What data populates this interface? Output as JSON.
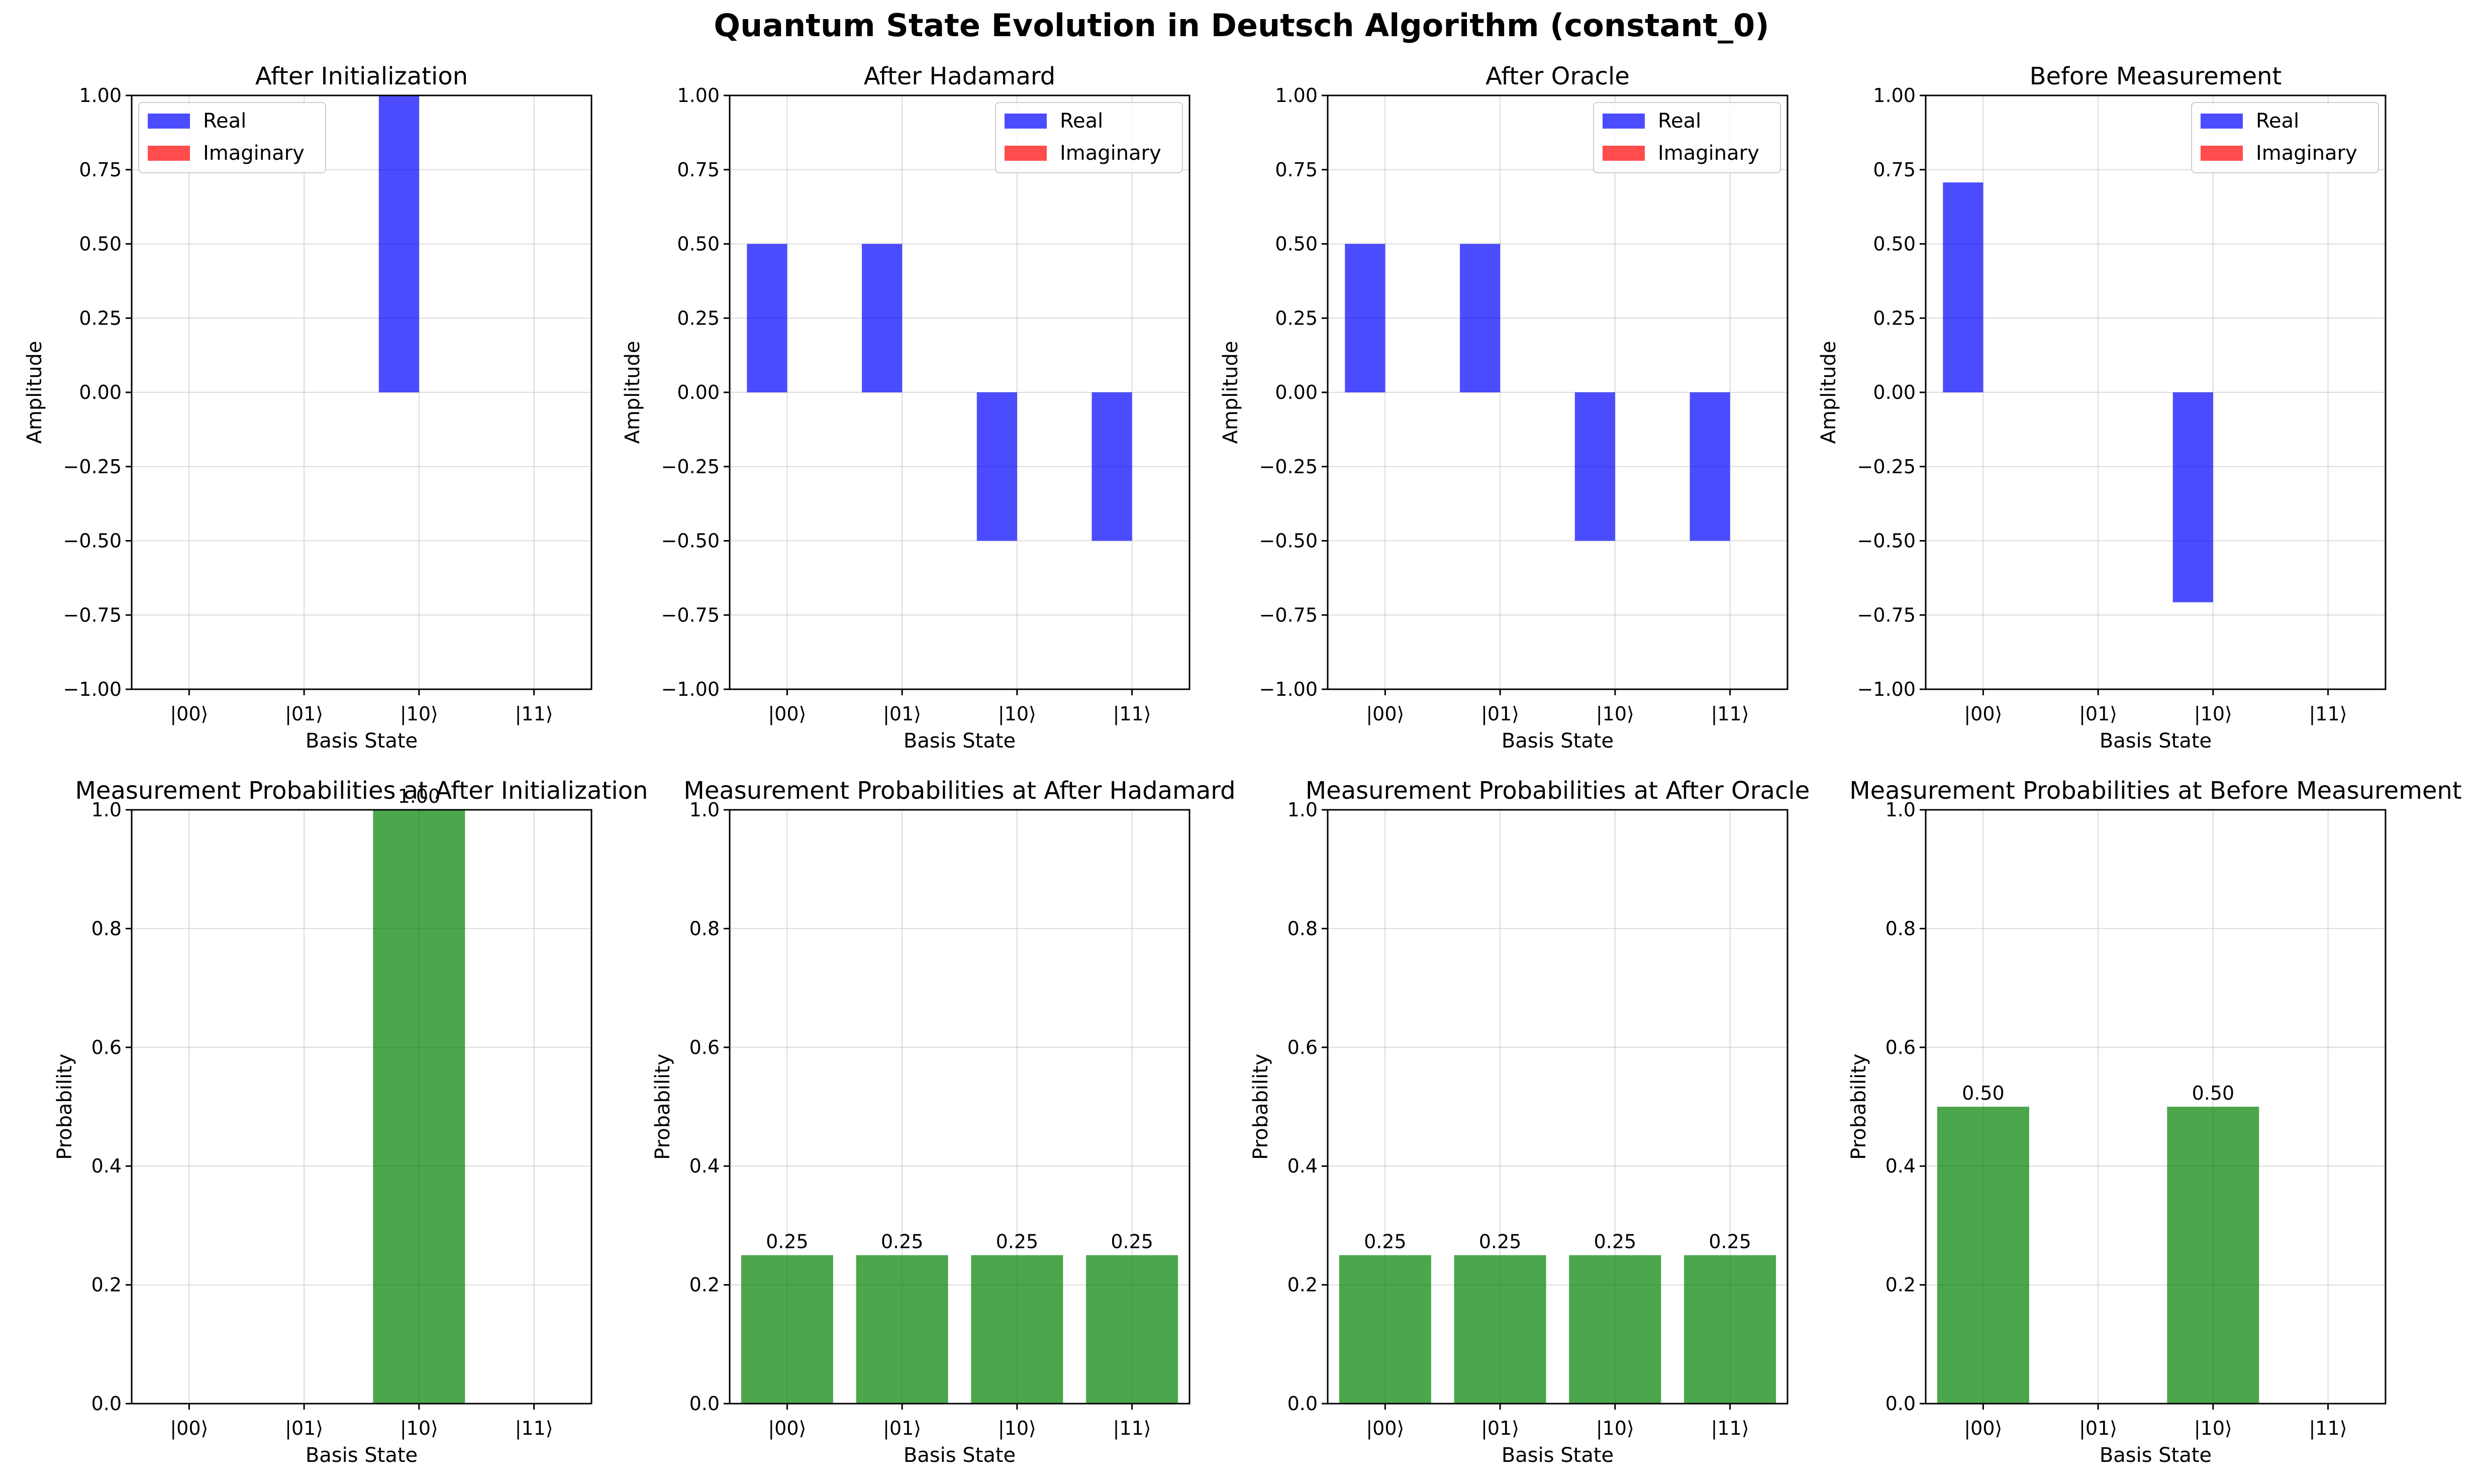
{
  "figure_title": "Quantum State Evolution in Deutsch Algorithm (constant_0)",
  "colors": {
    "real": "#0000ff",
    "imaginary": "#ff0000",
    "probability": "#008000",
    "grid": "#b0b0b0"
  },
  "chart_data": [
    {
      "type": "bar",
      "title": "After Initialization",
      "categories": [
        "|00⟩",
        "|01⟩",
        "|10⟩",
        "|11⟩"
      ],
      "series": [
        {
          "name": "Real",
          "values": [
            0,
            0,
            1.0,
            0
          ]
        },
        {
          "name": "Imaginary",
          "values": [
            0,
            0,
            0,
            0
          ]
        }
      ],
      "xlabel": "Basis State",
      "ylabel": "Amplitude",
      "ylim": [
        -1.0,
        1.0
      ],
      "yticks": [
        "1.00",
        "0.75",
        "0.50",
        "0.25",
        "0.00",
        "−0.25",
        "−0.50",
        "−0.75",
        "−1.00"
      ],
      "grid": true,
      "legend": "top-left"
    },
    {
      "type": "bar",
      "title": "After Hadamard",
      "categories": [
        "|00⟩",
        "|01⟩",
        "|10⟩",
        "|11⟩"
      ],
      "series": [
        {
          "name": "Real",
          "values": [
            0.5,
            0.5,
            -0.5,
            -0.5
          ]
        },
        {
          "name": "Imaginary",
          "values": [
            0,
            0,
            0,
            0
          ]
        }
      ],
      "xlabel": "Basis State",
      "ylabel": "Amplitude",
      "ylim": [
        -1.0,
        1.0
      ],
      "yticks": [
        "1.00",
        "0.75",
        "0.50",
        "0.25",
        "0.00",
        "−0.25",
        "−0.50",
        "−0.75",
        "−1.00"
      ],
      "grid": true,
      "legend": "top-right"
    },
    {
      "type": "bar",
      "title": "After Oracle",
      "categories": [
        "|00⟩",
        "|01⟩",
        "|10⟩",
        "|11⟩"
      ],
      "series": [
        {
          "name": "Real",
          "values": [
            0.5,
            0.5,
            -0.5,
            -0.5
          ]
        },
        {
          "name": "Imaginary",
          "values": [
            0,
            0,
            0,
            0
          ]
        }
      ],
      "xlabel": "Basis State",
      "ylabel": "Amplitude",
      "ylim": [
        -1.0,
        1.0
      ],
      "yticks": [
        "1.00",
        "0.75",
        "0.50",
        "0.25",
        "0.00",
        "−0.25",
        "−0.50",
        "−0.75",
        "−1.00"
      ],
      "grid": true,
      "legend": "top-right"
    },
    {
      "type": "bar",
      "title": "Before Measurement",
      "categories": [
        "|00⟩",
        "|01⟩",
        "|10⟩",
        "|11⟩"
      ],
      "series": [
        {
          "name": "Real",
          "values": [
            0.707,
            0,
            -0.707,
            0
          ]
        },
        {
          "name": "Imaginary",
          "values": [
            0,
            0,
            0,
            0
          ]
        }
      ],
      "xlabel": "Basis State",
      "ylabel": "Amplitude",
      "ylim": [
        -1.0,
        1.0
      ],
      "yticks": [
        "1.00",
        "0.75",
        "0.50",
        "0.25",
        "0.00",
        "−0.25",
        "−0.50",
        "−0.75",
        "−1.00"
      ],
      "grid": true,
      "legend": "top-right"
    },
    {
      "type": "bar",
      "title": "Measurement Probabilities at After Initialization",
      "categories": [
        "|00⟩",
        "|01⟩",
        "|10⟩",
        "|11⟩"
      ],
      "values": [
        0,
        0,
        1.0,
        0
      ],
      "value_labels": [
        "",
        "",
        "1.00",
        ""
      ],
      "xlabel": "Basis State",
      "ylabel": "Probability",
      "ylim": [
        0,
        1.0
      ],
      "yticks": [
        "1.0",
        "0.8",
        "0.6",
        "0.4",
        "0.2",
        "0.0"
      ],
      "grid": true
    },
    {
      "type": "bar",
      "title": "Measurement Probabilities at After Hadamard",
      "categories": [
        "|00⟩",
        "|01⟩",
        "|10⟩",
        "|11⟩"
      ],
      "values": [
        0.25,
        0.25,
        0.25,
        0.25
      ],
      "value_labels": [
        "0.25",
        "0.25",
        "0.25",
        "0.25"
      ],
      "xlabel": "Basis State",
      "ylabel": "Probability",
      "ylim": [
        0,
        1.0
      ],
      "yticks": [
        "1.0",
        "0.8",
        "0.6",
        "0.4",
        "0.2",
        "0.0"
      ],
      "grid": true
    },
    {
      "type": "bar",
      "title": "Measurement Probabilities at After Oracle",
      "categories": [
        "|00⟩",
        "|01⟩",
        "|10⟩",
        "|11⟩"
      ],
      "values": [
        0.25,
        0.25,
        0.25,
        0.25
      ],
      "value_labels": [
        "0.25",
        "0.25",
        "0.25",
        "0.25"
      ],
      "xlabel": "Basis State",
      "ylabel": "Probability",
      "ylim": [
        0,
        1.0
      ],
      "yticks": [
        "1.0",
        "0.8",
        "0.6",
        "0.4",
        "0.2",
        "0.0"
      ],
      "grid": true
    },
    {
      "type": "bar",
      "title": "Measurement Probabilities at Before Measurement",
      "categories": [
        "|00⟩",
        "|01⟩",
        "|10⟩",
        "|11⟩"
      ],
      "values": [
        0.5,
        0,
        0.5,
        0
      ],
      "value_labels": [
        "0.50",
        "",
        "0.50",
        ""
      ],
      "xlabel": "Basis State",
      "ylabel": "Probability",
      "ylim": [
        0,
        1.0
      ],
      "yticks": [
        "1.0",
        "0.8",
        "0.6",
        "0.4",
        "0.2",
        "0.0"
      ],
      "grid": true
    }
  ]
}
